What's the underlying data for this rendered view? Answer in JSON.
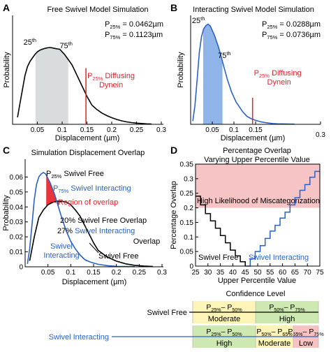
{
  "chart_data": [
    {
      "panel": "A",
      "type": "line",
      "title": "Free Swivel Model Simulation",
      "xlabel": "Displacement (µm)",
      "ylabel": "Probability",
      "xlim": [
        0,
        0.3
      ],
      "x_ticks": [
        0.05,
        0.1,
        0.15,
        0.2,
        0.25,
        0.3
      ],
      "x_tick_labels": [
        "0.05",
        "0.1",
        "0.15",
        "0.2",
        "0.25",
        "0.3"
      ],
      "series": [
        {
          "x": [
            0.01,
            0.015,
            0.02,
            0.025,
            0.03,
            0.035,
            0.04,
            0.045,
            0.05,
            0.055,
            0.06,
            0.065,
            0.07,
            0.075,
            0.08,
            0.085,
            0.09,
            0.095,
            0.1,
            0.105,
            0.11,
            0.115,
            0.12,
            0.125,
            0.13,
            0.135,
            0.14,
            0.145,
            0.15,
            0.155,
            0.16,
            0.17,
            0.18,
            0.19,
            0.2,
            0.21,
            0.22,
            0.23,
            0.24,
            0.25,
            0.26,
            0.27,
            0.28
          ],
          "y": [
            0.004,
            0.012,
            0.02,
            0.028,
            0.033,
            0.036,
            0.038,
            0.04,
            0.0415,
            0.0425,
            0.043,
            0.0435,
            0.0438,
            0.044,
            0.0438,
            0.0435,
            0.0432,
            0.043,
            0.0415,
            0.04,
            0.038,
            0.036,
            0.034,
            0.031,
            0.028,
            0.025,
            0.022,
            0.019,
            0.016,
            0.0135,
            0.011,
            0.0085,
            0.0065,
            0.005,
            0.0038,
            0.0028,
            0.002,
            0.0014,
            0.001,
            0.0007,
            0.0005,
            0.0003,
            0.0002
          ]
        }
      ],
      "shaded_range": [
        0.0462,
        0.1123
      ],
      "percentile_labels": [
        {
          "base": "25",
          "sup": "th",
          "x": 0.035,
          "y": 0.044
        },
        {
          "base": "75",
          "sup": "th",
          "x": 0.108,
          "y": 0.042
        }
      ],
      "marker_line": {
        "x": 0.148,
        "y": 0.017,
        "label_lines": [
          "P25% Diffusing",
          "Dynein"
        ]
      },
      "stats": [
        {
          "base": "P",
          "sub": "25%",
          "value": "= 0.0462µm"
        },
        {
          "base": "P",
          "sub": "75%",
          "value": "= 0.1123µm"
        }
      ]
    },
    {
      "panel": "B",
      "type": "line",
      "title": "Interacting Swivel Model Simulation",
      "xlabel": "Displacement (µm)",
      "ylabel": "Probability",
      "xlim": [
        0,
        0.3
      ],
      "x_ticks": [
        0.05,
        0.1,
        0.15,
        0.3
      ],
      "x_tick_labels": [
        "0.05",
        "0.1",
        "0.15",
        "0.3"
      ],
      "series": [
        {
          "x": [
            0.005,
            0.01,
            0.015,
            0.02,
            0.025,
            0.03,
            0.035,
            0.04,
            0.045,
            0.05,
            0.055,
            0.06,
            0.065,
            0.07,
            0.075,
            0.08,
            0.085,
            0.09,
            0.095,
            0.1,
            0.105,
            0.11,
            0.115,
            0.12,
            0.125,
            0.13,
            0.14,
            0.15,
            0.16,
            0.17,
            0.18,
            0.19,
            0.2,
            0.22,
            0.24
          ],
          "y": [
            0.002,
            0.012,
            0.028,
            0.045,
            0.055,
            0.06,
            0.062,
            0.063,
            0.062,
            0.059,
            0.056,
            0.052,
            0.048,
            0.043,
            0.038,
            0.033,
            0.028,
            0.024,
            0.02,
            0.017,
            0.014,
            0.012,
            0.01,
            0.008,
            0.0065,
            0.005,
            0.0035,
            0.0025,
            0.0017,
            0.0012,
            0.0008,
            0.0005,
            0.0003,
            0.0002,
            0.0001
          ]
        }
      ],
      "shaded_range": [
        0.0288,
        0.0736
      ],
      "percentile_labels": [
        {
          "base": "25",
          "sup": "th",
          "x": 0.018,
          "y": 0.062
        },
        {
          "base": "75",
          "sup": "th",
          "x": 0.078,
          "y": 0.04
        }
      ],
      "marker_line": {
        "x": 0.143,
        "y": 0.011,
        "label_lines": [
          "P25% Diffusing",
          "Dynein"
        ]
      },
      "stats": [
        {
          "base": "P",
          "sub": "25%",
          "value": "= 0.0288µm"
        },
        {
          "base": "P",
          "sub": "75%",
          "value": "= 0.0736µm"
        }
      ]
    },
    {
      "panel": "C",
      "type": "line",
      "title": "Simulation Displacement Overlap",
      "xlabel": "Displacement (µm)",
      "ylabel": "Probability",
      "xlim": [
        0,
        0.3
      ],
      "ylim": [
        0,
        0.07
      ],
      "x_ticks": [
        0.05,
        0.1,
        0.15,
        0.2,
        0.25,
        0.3
      ],
      "x_tick_labels": [
        "0.05",
        "0.1",
        "0.15",
        "0.2",
        "0.25",
        "0.3"
      ],
      "y_ticks": [
        0,
        0.01,
        0.02,
        0.03,
        0.04,
        0.05,
        0.06
      ],
      "y_tick_labels": [
        "0",
        "0.01",
        "0.02",
        "0.03",
        "0.04",
        "0.05",
        "0.06"
      ],
      "series": [
        {
          "name": "Swivel Free",
          "color": "#000000",
          "x": [
            0.01,
            0.02,
            0.03,
            0.04,
            0.05,
            0.06,
            0.07,
            0.08,
            0.09,
            0.1,
            0.11,
            0.12,
            0.13,
            0.14,
            0.15,
            0.16,
            0.18,
            0.2,
            0.22,
            0.24,
            0.26,
            0.28
          ],
          "y": [
            0.004,
            0.02,
            0.033,
            0.038,
            0.0415,
            0.043,
            0.0438,
            0.0438,
            0.0432,
            0.0415,
            0.038,
            0.034,
            0.028,
            0.022,
            0.016,
            0.011,
            0.0065,
            0.0038,
            0.002,
            0.001,
            0.0005,
            0.0002
          ]
        },
        {
          "name": "Swivel Interacting",
          "color": "#2b62c4",
          "x": [
            0.005,
            0.01,
            0.015,
            0.02,
            0.025,
            0.03,
            0.035,
            0.04,
            0.045,
            0.05,
            0.055,
            0.06,
            0.065,
            0.07,
            0.075,
            0.08,
            0.09,
            0.1,
            0.11,
            0.12,
            0.13,
            0.14,
            0.15,
            0.16,
            0.18,
            0.2,
            0.22,
            0.24
          ],
          "y": [
            0.002,
            0.012,
            0.028,
            0.045,
            0.055,
            0.06,
            0.062,
            0.063,
            0.062,
            0.059,
            0.056,
            0.052,
            0.048,
            0.043,
            0.038,
            0.033,
            0.024,
            0.017,
            0.012,
            0.008,
            0.005,
            0.0035,
            0.0025,
            0.0017,
            0.0008,
            0.0003,
            0.0002,
            0.0001
          ]
        }
      ],
      "overlap_region": [
        0.0462,
        0.0736
      ],
      "annotations": {
        "p25_swivel_free": {
          "base": "P",
          "sub": "25%",
          "text": " Swivel Free"
        },
        "p75_swivel_interacting": {
          "base": "P",
          "sub": "75%",
          "text": " Swivel Interacting"
        },
        "region": "Region of overlap",
        "pct_free": "20% Swivel Free Overlap",
        "pct_inter_num": "27%",
        "pct_inter_text": " Swivel Interacting",
        "pct_inter_line2": "Overlap",
        "label_interacting_1": "Swivel",
        "label_interacting_2": "Interacting",
        "label_free": "Swivel Free"
      }
    },
    {
      "panel": "D",
      "type": "line",
      "title_lines": [
        "Percentage Overlap",
        "Varying Upper Percentile Value"
      ],
      "xlabel": "Upper Percentile Value",
      "ylabel": "Percentage Overlap",
      "xlim": [
        25,
        75
      ],
      "ylim": [
        0,
        0.35
      ],
      "x_ticks": [
        25,
        30,
        35,
        40,
        45,
        50,
        55,
        60,
        65,
        70,
        75
      ],
      "y_ticks": [
        0,
        0.05,
        0.1,
        0.15,
        0.2,
        0.25,
        0.3,
        0.35
      ],
      "y_tick_labels": [
        "0",
        "0.05",
        "0.1",
        "0.15",
        "0.2",
        "0.25",
        "0.3",
        "0.35"
      ],
      "highlight_band": {
        "y_from": 0.2,
        "y_to": 0.35,
        "label": "High Likelihood of Miscategorization"
      },
      "series": [
        {
          "name": "Swivel Free",
          "color": "#000000",
          "x": [
            25,
            27,
            27,
            29,
            29,
            31,
            31,
            33,
            33,
            35,
            35,
            37,
            37,
            39,
            39,
            41,
            41,
            43,
            43,
            45,
            45
          ],
          "y": [
            0.24,
            0.24,
            0.21,
            0.21,
            0.18,
            0.18,
            0.155,
            0.155,
            0.13,
            0.13,
            0.105,
            0.105,
            0.08,
            0.08,
            0.055,
            0.055,
            0.035,
            0.035,
            0.015,
            0.015,
            0.0
          ]
        },
        {
          "name": "Swivel Interacting",
          "color": "#2b62c4",
          "x": [
            45,
            47,
            47,
            49,
            49,
            51,
            51,
            53,
            53,
            55,
            55,
            57,
            57,
            59,
            59,
            61,
            61,
            63,
            63,
            65,
            65,
            67,
            67,
            69,
            69,
            71,
            71,
            73,
            73,
            75
          ],
          "y": [
            0.0,
            0.0,
            0.025,
            0.025,
            0.05,
            0.05,
            0.07,
            0.07,
            0.095,
            0.095,
            0.12,
            0.12,
            0.14,
            0.14,
            0.165,
            0.165,
            0.185,
            0.185,
            0.21,
            0.21,
            0.235,
            0.235,
            0.26,
            0.26,
            0.28,
            0.28,
            0.305,
            0.305,
            0.325,
            0.325
          ]
        }
      ],
      "curve_labels": {
        "free": "Swivel Free",
        "interacting": "Swivel Interacting"
      }
    }
  ],
  "panel_letters": [
    "A",
    "B",
    "C",
    "D"
  ],
  "confidence_table": {
    "title": "Confidence Level",
    "rows": [
      {
        "label": "Swivel Free",
        "color": "#000000",
        "boundaries": [
          25,
          50,
          75
        ],
        "ranges": [
          {
            "p1": "25%",
            "p2": "50%",
            "level": "Moderate",
            "color": "#fdf5b8"
          },
          {
            "p1": "50%",
            "p2": "75%",
            "level": "High",
            "color": "#cde8b0"
          }
        ]
      },
      {
        "label": "Swivel Interacting",
        "color": "#2b62c4",
        "boundaries": [
          25,
          50,
          65,
          75
        ],
        "ranges": [
          {
            "p1": "25%",
            "p2": "50%",
            "level": "High",
            "color": "#cde8b0"
          },
          {
            "p1": "50%",
            "p2": "65%",
            "level": "Moderate",
            "color": "#fdf5b8"
          },
          {
            "p1": "65%",
            "p2": "75%",
            "level": "Low",
            "color": "#f6c2c2"
          }
        ]
      }
    ]
  },
  "colors": {
    "blue": "#2b62c4",
    "red": "#e0242a",
    "shade_grey": "#d9dcdc",
    "shade_blue": "#8fb4e8",
    "band_pink": "#f6c4c4",
    "overlap_red": "#e8343a"
  }
}
